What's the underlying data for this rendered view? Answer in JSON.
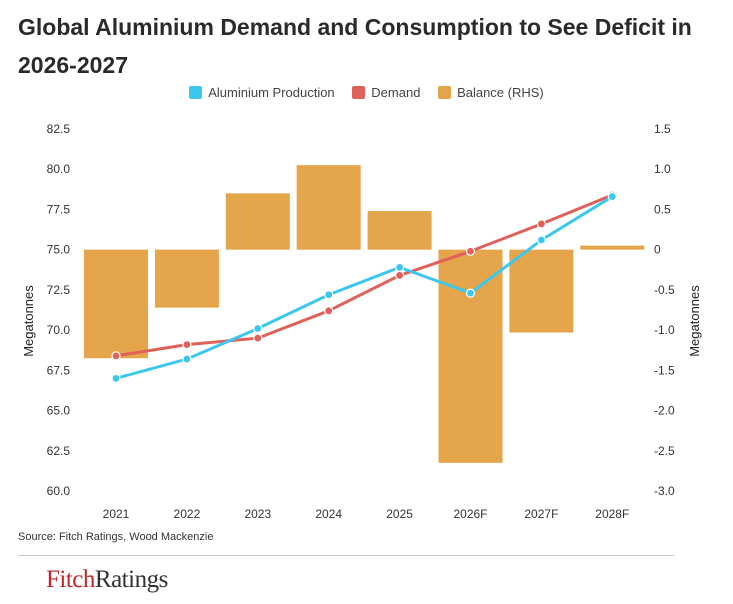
{
  "title": "Global Aluminium Demand and Consumption to See Deficit in 2026-2027",
  "legend": [
    {
      "label": "Aluminium Production",
      "color": "#3cc8ee"
    },
    {
      "label": "Demand",
      "color": "#e0605a"
    },
    {
      "label": "Balance (RHS)",
      "color": "#e5a54b"
    }
  ],
  "source": "Source: Fitch Ratings, Wood Mackenzie",
  "logo": {
    "part1": "Fitch",
    "part2": "Ratings"
  },
  "chart_data": {
    "type": "bar+line",
    "categories": [
      "2021",
      "2022",
      "2023",
      "2024",
      "2025",
      "2026F",
      "2027F",
      "2028F"
    ],
    "y_left": {
      "label": "Megatonnes",
      "range": [
        60.0,
        82.5
      ],
      "ticks": [
        "82.5",
        "80.0",
        "77.5",
        "75.0",
        "72.5",
        "70.0",
        "67.5",
        "65.0",
        "62.5",
        "60.0"
      ]
    },
    "y_right": {
      "label": "Megatonnes",
      "range": [
        -3.0,
        1.5
      ],
      "ticks": [
        "1.5",
        "1.0",
        "0.5",
        "0",
        "-0.5",
        "-1.0",
        "-1.5",
        "-2.0",
        "-2.5",
        "-3.0"
      ]
    },
    "series": [
      {
        "name": "Aluminium Production",
        "axis": "left",
        "type": "line",
        "color": "#3cc8ee",
        "values": [
          67.0,
          68.2,
          70.1,
          72.2,
          73.9,
          72.3,
          75.6,
          78.3
        ]
      },
      {
        "name": "Demand",
        "axis": "left",
        "type": "line",
        "color": "#e0605a",
        "values": [
          68.4,
          69.1,
          69.5,
          71.2,
          73.4,
          74.9,
          76.6,
          78.4
        ]
      },
      {
        "name": "Balance (RHS)",
        "axis": "right",
        "type": "bar",
        "color": "#e5a54b",
        "values": [
          -1.35,
          -0.72,
          0.7,
          1.05,
          0.48,
          -2.65,
          -1.03,
          0.05
        ]
      }
    ],
    "grid": false,
    "legend_position": "top"
  }
}
